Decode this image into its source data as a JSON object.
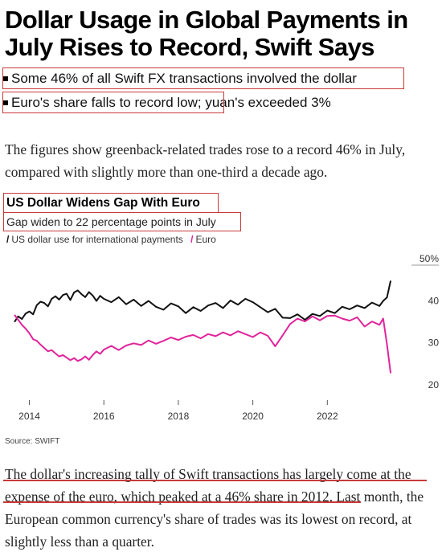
{
  "article": {
    "headline": "Dollar Usage in Global Payments in July Rises to Record, Swift Says",
    "bullets": [
      "Some 46% of all Swift FX transactions involved the dollar",
      "Euro's share falls to record low; yuan's exceeded 3%"
    ],
    "intro": "The figures show greenback-related trades rose to a record 46% in July, compared with slightly more than one-third a decade ago.",
    "closing": "The dollar's increasing tally of Swift transactions has largely come at the expense of the euro, which peaked at a 46% share in 2012. Last month, the European common currency's share of trades was its lowest on record, at slightly less than a quarter."
  },
  "chart_data": {
    "type": "line",
    "title": "US Dollar Widens Gap With Euro",
    "subtitle": "Gap widen to 22 percentage points in July",
    "source": "Source: SWIFT",
    "x_ticks": [
      "2014",
      "2016",
      "2018",
      "2020",
      "2022"
    ],
    "y_ticks": [
      "50%",
      "40",
      "30",
      "20"
    ],
    "ylim": [
      20,
      50
    ],
    "xlim": [
      2013.6,
      2024.0
    ],
    "grid": false,
    "legend_position": "top-left",
    "colors": {
      "usd": "#111111",
      "eur": "#e0249b"
    },
    "series": [
      {
        "name": "US dollar use for international payments",
        "key": "usd",
        "x": [
          2013.6,
          2013.7,
          2013.8,
          2013.9,
          2014.0,
          2014.1,
          2014.2,
          2014.3,
          2014.4,
          2014.5,
          2014.6,
          2014.7,
          2014.8,
          2014.9,
          2015.0,
          2015.1,
          2015.2,
          2015.3,
          2015.4,
          2015.5,
          2015.6,
          2015.7,
          2015.8,
          2015.9,
          2016.0,
          2016.2,
          2016.4,
          2016.6,
          2016.8,
          2017.0,
          2017.2,
          2017.4,
          2017.6,
          2017.8,
          2018.0,
          2018.2,
          2018.4,
          2018.6,
          2018.8,
          2019.0,
          2019.2,
          2019.4,
          2019.6,
          2019.8,
          2020.0,
          2020.2,
          2020.4,
          2020.6,
          2020.8,
          2021.0,
          2021.2,
          2021.4,
          2021.6,
          2021.8,
          2022.0,
          2022.2,
          2022.4,
          2022.6,
          2022.8,
          2023.0,
          2023.2,
          2023.4,
          2023.5,
          2023.6,
          2023.7
        ],
        "values": [
          36.5,
          37.8,
          37.2,
          38.5,
          39.0,
          38.3,
          40.5,
          41.3,
          41.0,
          40.2,
          42.0,
          42.6,
          41.8,
          42.9,
          43.2,
          41.7,
          43.5,
          44.0,
          43.1,
          42.4,
          43.6,
          42.8,
          41.5,
          42.7,
          42.0,
          41.2,
          42.4,
          40.7,
          41.8,
          40.3,
          41.5,
          40.1,
          39.4,
          40.9,
          40.2,
          38.6,
          40.0,
          39.1,
          40.4,
          41.0,
          39.8,
          41.6,
          40.6,
          42.0,
          41.2,
          40.0,
          38.8,
          39.6,
          37.5,
          37.4,
          38.3,
          37.0,
          38.4,
          37.9,
          39.2,
          38.6,
          40.1,
          39.5,
          40.4,
          39.8,
          41.1,
          40.3,
          41.5,
          42.3,
          46.3
        ]
      },
      {
        "name": "Euro",
        "key": "eur",
        "x": [
          2013.6,
          2013.7,
          2013.8,
          2013.9,
          2014.0,
          2014.1,
          2014.2,
          2014.3,
          2014.4,
          2014.5,
          2014.6,
          2014.7,
          2014.8,
          2014.9,
          2015.0,
          2015.1,
          2015.2,
          2015.3,
          2015.4,
          2015.5,
          2015.6,
          2015.7,
          2015.8,
          2015.9,
          2016.0,
          2016.2,
          2016.4,
          2016.6,
          2016.8,
          2017.0,
          2017.2,
          2017.4,
          2017.6,
          2017.8,
          2018.0,
          2018.2,
          2018.4,
          2018.6,
          2018.8,
          2019.0,
          2019.2,
          2019.4,
          2019.6,
          2019.8,
          2020.0,
          2020.2,
          2020.4,
          2020.6,
          2020.8,
          2021.0,
          2021.2,
          2021.4,
          2021.6,
          2021.8,
          2022.0,
          2022.2,
          2022.4,
          2022.6,
          2022.8,
          2023.0,
          2023.2,
          2023.4,
          2023.5,
          2023.6,
          2023.7
        ],
        "values": [
          38.2,
          37.0,
          35.8,
          34.9,
          33.8,
          32.4,
          32.0,
          31.1,
          30.3,
          29.5,
          29.8,
          29.0,
          28.3,
          28.6,
          28.0,
          27.4,
          27.9,
          27.2,
          27.6,
          28.3,
          27.5,
          28.6,
          29.5,
          28.9,
          29.9,
          30.8,
          29.8,
          30.9,
          31.4,
          31.0,
          32.1,
          31.3,
          32.0,
          32.8,
          32.2,
          33.0,
          33.4,
          32.6,
          33.6,
          33.1,
          34.0,
          33.3,
          34.3,
          33.6,
          32.9,
          34.0,
          33.2,
          30.7,
          33.3,
          36.0,
          37.3,
          36.6,
          37.8,
          36.9,
          37.9,
          38.0,
          37.3,
          36.8,
          37.6,
          35.4,
          36.6,
          35.8,
          37.3,
          31.2,
          24.3
        ]
      }
    ]
  }
}
